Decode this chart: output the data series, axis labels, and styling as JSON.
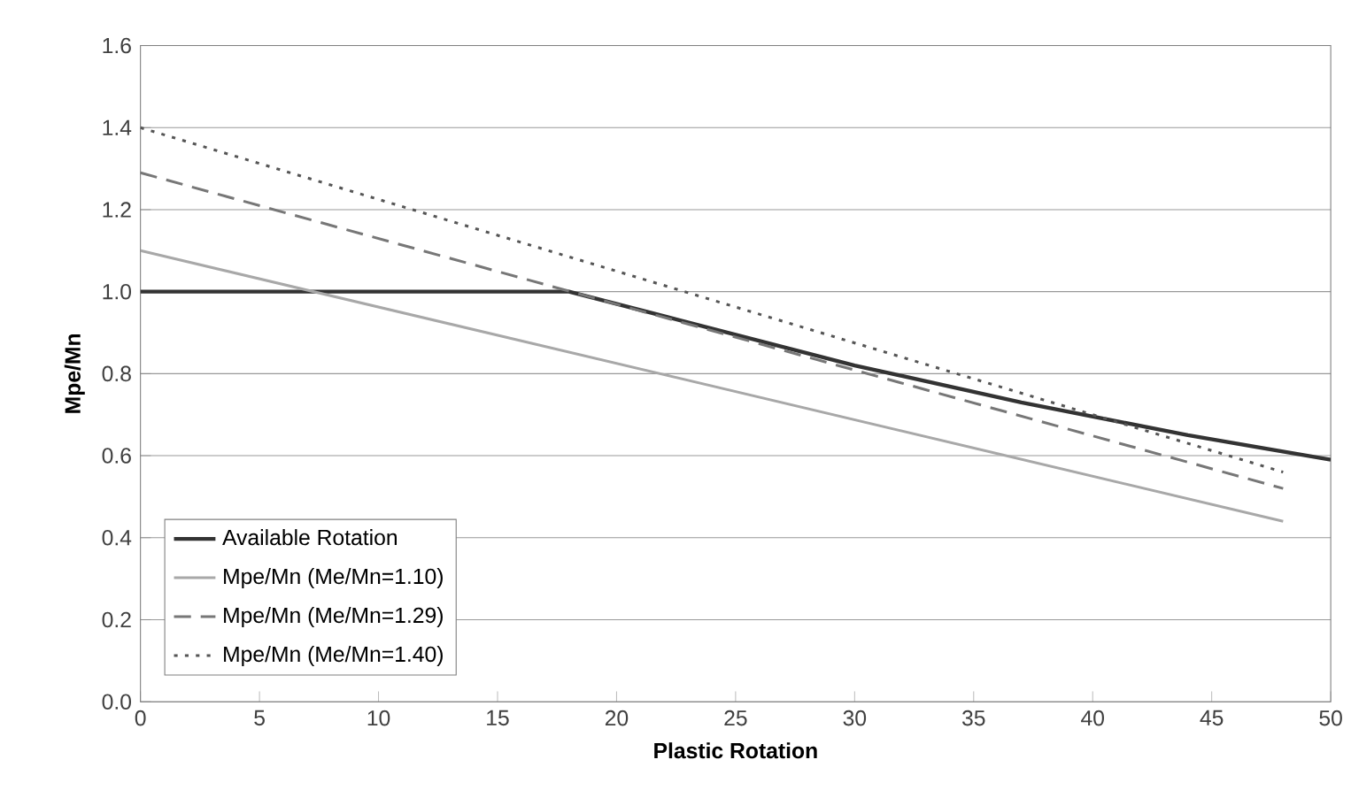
{
  "chart_data": {
    "type": "line",
    "xlabel": "Plastic Rotation",
    "ylabel": "Mpe/Mn",
    "xlim": [
      0,
      50
    ],
    "xticks": [
      0,
      5,
      10,
      15,
      20,
      25,
      30,
      35,
      40,
      45,
      50
    ],
    "ylim": [
      0,
      1.6
    ],
    "yticks": [
      {
        "value": 0,
        "label": "0.0"
      },
      0.2,
      0.4,
      0.6,
      0.8,
      {
        "value": 1,
        "label": "1.0"
      },
      1.2,
      1.4,
      1.6
    ],
    "grid": "y",
    "legend": "bottom left",
    "marker": "none",
    "series": [
      {
        "name": "Available Rotation",
        "color": "#333333",
        "line_style": "solid",
        "x": [
          0,
          18,
          22,
          30,
          37,
          44,
          50
        ],
        "values": [
          1.0,
          1.0,
          0.94,
          0.82,
          0.73,
          0.65,
          0.59
        ]
      },
      {
        "name": "Mpe/Mn (Me/Mn=1.10)",
        "color": "#a8a8a8",
        "line_style": "solid",
        "x": [
          0,
          48
        ],
        "values": [
          1.1,
          0.44
        ]
      },
      {
        "name": "Mpe/Mn (Me/Mn=1.29)",
        "color": "#777777",
        "line_style": "dashed",
        "x": [
          0,
          48
        ],
        "values": [
          1.29,
          0.52
        ]
      },
      {
        "name": "Mpe/Mn (Me/Mn=1.40)",
        "color": "#555555",
        "line_style": "dotted",
        "x": [
          0,
          48
        ],
        "values": [
          1.4,
          0.56
        ]
      }
    ]
  }
}
